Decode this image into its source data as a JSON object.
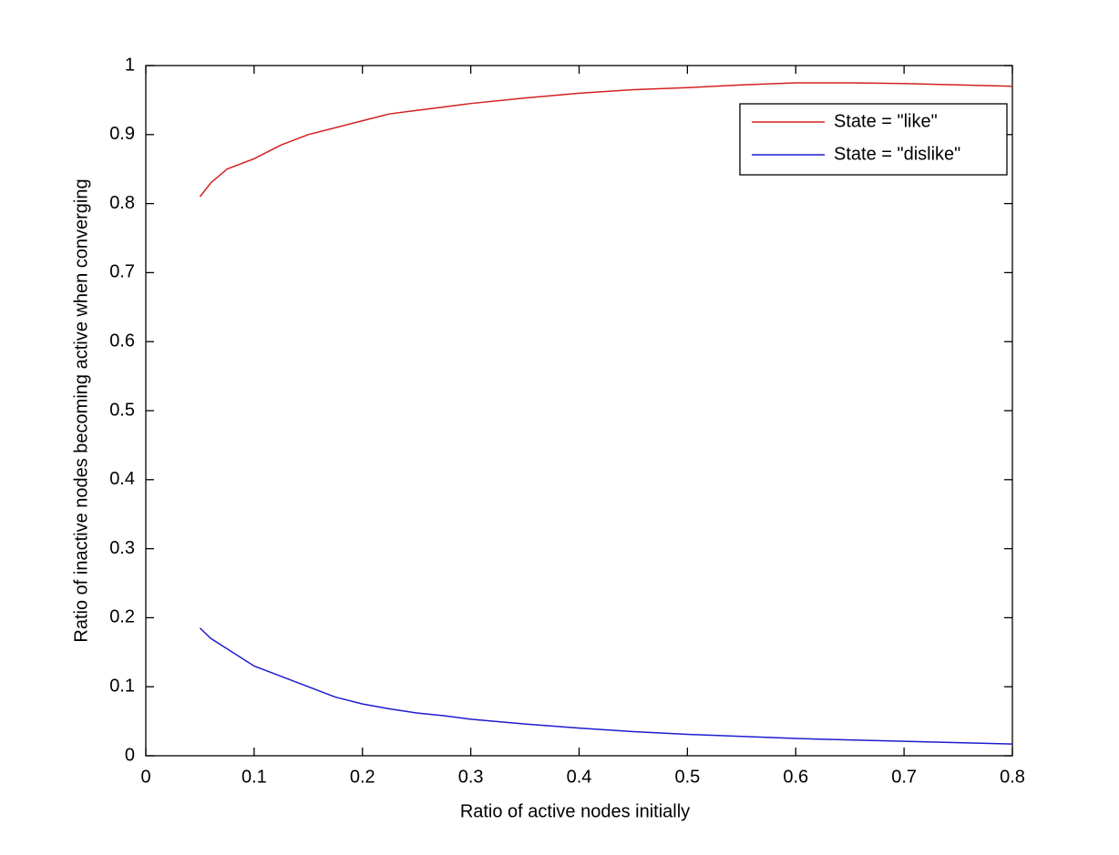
{
  "chart_data": {
    "type": "line",
    "xlabel": "Ratio of active nodes initially",
    "ylabel": "Ratio of inactive nodes becoming active when converging",
    "x": [
      0.05,
      0.06,
      0.075,
      0.1,
      0.125,
      0.15,
      0.175,
      0.2,
      0.225,
      0.25,
      0.275,
      0.3,
      0.35,
      0.4,
      0.45,
      0.5,
      0.55,
      0.6,
      0.65,
      0.7,
      0.75,
      0.8
    ],
    "series": [
      {
        "name": "State = \"like\"",
        "color": "#d42020",
        "values": [
          0.81,
          0.83,
          0.85,
          0.865,
          0.885,
          0.9,
          0.91,
          0.92,
          0.93,
          0.935,
          0.94,
          0.945,
          0.953,
          0.96,
          0.965,
          0.968,
          0.972,
          0.975,
          0.975,
          0.974,
          0.972,
          0.97
        ]
      },
      {
        "name": "State = \"dislike\"",
        "color": "#1c1cd0",
        "values": [
          0.185,
          0.17,
          0.155,
          0.13,
          0.115,
          0.1,
          0.085,
          0.075,
          0.068,
          0.062,
          0.058,
          0.053,
          0.046,
          0.04,
          0.035,
          0.031,
          0.028,
          0.025,
          0.023,
          0.021,
          0.019,
          0.017
        ]
      }
    ],
    "xlim": [
      0,
      0.8
    ],
    "xticks": [
      0,
      0.1,
      0.2,
      0.3,
      0.4,
      0.5,
      0.6,
      0.7,
      0.8
    ],
    "ylim": [
      0,
      1
    ],
    "yticks": [
      0,
      0.1,
      0.2,
      0.3,
      0.4,
      0.5,
      0.6,
      0.7,
      0.8,
      0.9,
      1
    ],
    "grid": false,
    "legend": "northeast"
  }
}
